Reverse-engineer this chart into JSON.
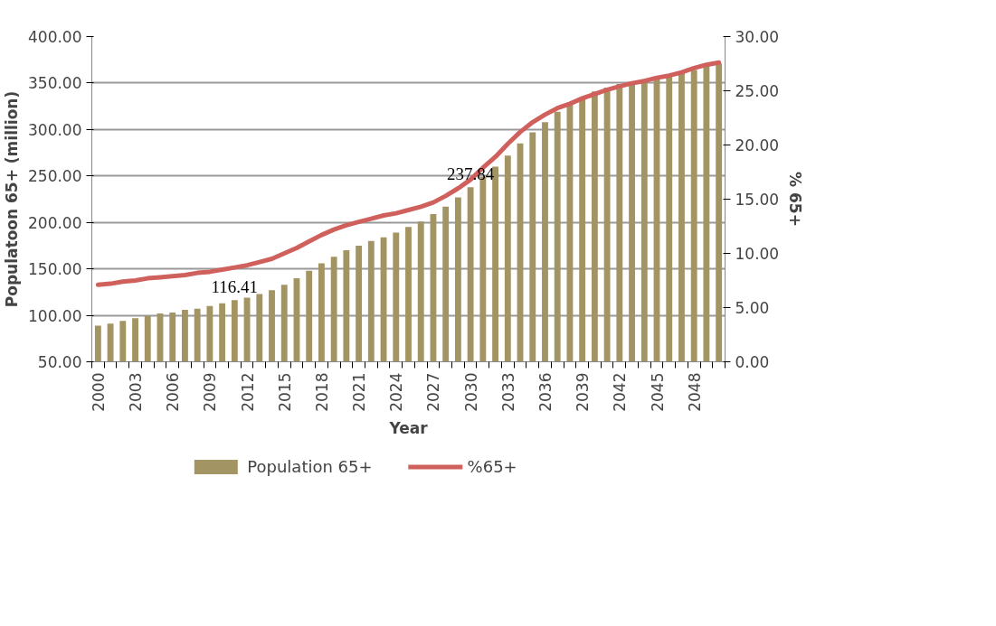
{
  "chart_data": {
    "type": "bar",
    "xlabel": "Year",
    "ylabel": "Populatoon 65+ (million)",
    "y2label": "% 65+",
    "categories": [
      "2000",
      null,
      null,
      "2003",
      null,
      null,
      "2006",
      null,
      null,
      "2009",
      null,
      null,
      "2012",
      null,
      null,
      "2015",
      null,
      null,
      "2018",
      null,
      null,
      "2021",
      null,
      null,
      "2024",
      null,
      null,
      "2027",
      null,
      null,
      "2030",
      null,
      null,
      "2033",
      null,
      null,
      "2036",
      null,
      null,
      "2039",
      null,
      null,
      "2042",
      null,
      null,
      "2045",
      null,
      null,
      "2048",
      null,
      null
    ],
    "series": [
      {
        "name": "Population 65+",
        "color": "#a39563",
        "values": [
          89,
          91,
          94,
          97,
          99,
          102,
          103,
          106,
          107,
          110,
          113,
          116.41,
          119,
          123,
          127,
          133,
          140,
          148,
          156,
          163,
          170,
          175,
          180,
          184,
          189,
          195,
          201,
          209,
          217,
          227,
          237.84,
          249,
          260,
          272,
          285,
          297,
          308,
          319,
          328,
          334,
          341,
          345,
          349,
          351,
          354,
          356,
          358,
          361,
          364,
          368,
          371
        ],
        "value_labels": [
          null,
          null,
          null,
          null,
          null,
          null,
          null,
          null,
          null,
          null,
          null,
          "116.41",
          null,
          null,
          null,
          null,
          null,
          null,
          null,
          null,
          null,
          null,
          null,
          null,
          null,
          null,
          null,
          null,
          null,
          null,
          "237.84",
          null,
          null,
          null,
          null,
          null,
          null,
          null,
          null,
          null,
          null,
          null,
          null,
          null,
          null,
          null,
          null,
          null,
          null,
          null,
          null
        ]
      },
      {
        "name": "%65+",
        "type": "line",
        "axis": "y2",
        "color": "#d0605c",
        "line_style": "solid",
        "values": [
          7.1,
          7.2,
          7.4,
          7.5,
          7.7,
          7.8,
          7.9,
          8.0,
          8.2,
          8.3,
          8.5,
          8.7,
          8.9,
          9.2,
          9.5,
          10.0,
          10.5,
          11.1,
          11.7,
          12.2,
          12.6,
          12.9,
          13.2,
          13.5,
          13.7,
          14.0,
          14.3,
          14.7,
          15.3,
          16.0,
          16.8,
          17.9,
          18.9,
          20.1,
          21.2,
          22.1,
          22.8,
          23.4,
          23.8,
          24.3,
          24.7,
          25.1,
          25.4,
          25.7,
          25.9,
          26.2,
          26.4,
          26.7,
          27.1,
          27.4,
          27.6
        ]
      }
    ],
    "ylim": [
      50,
      400
    ],
    "yticks": [
      {
        "value": 50,
        "label": "50.00"
      },
      {
        "value": 100,
        "label": "100.00"
      },
      {
        "value": 150,
        "label": "150.00"
      },
      {
        "value": 200,
        "label": "200.00"
      },
      {
        "value": 250,
        "label": "250.00"
      },
      {
        "value": 300,
        "label": "300.00"
      },
      {
        "value": 350,
        "label": "350.00"
      },
      {
        "value": 400,
        "label": "400.00"
      }
    ],
    "y2lim": [
      0,
      30
    ],
    "y2ticks": [
      {
        "value": 0,
        "label": "0.00"
      },
      {
        "value": 5,
        "label": "5.00"
      },
      {
        "value": 10,
        "label": "10.00"
      },
      {
        "value": 15,
        "label": "15.00"
      },
      {
        "value": 20,
        "label": "20.00"
      },
      {
        "value": 25,
        "label": "25.00"
      },
      {
        "value": 30,
        "label": "30.00"
      }
    ],
    "grid": "y",
    "legend": "bottom"
  }
}
